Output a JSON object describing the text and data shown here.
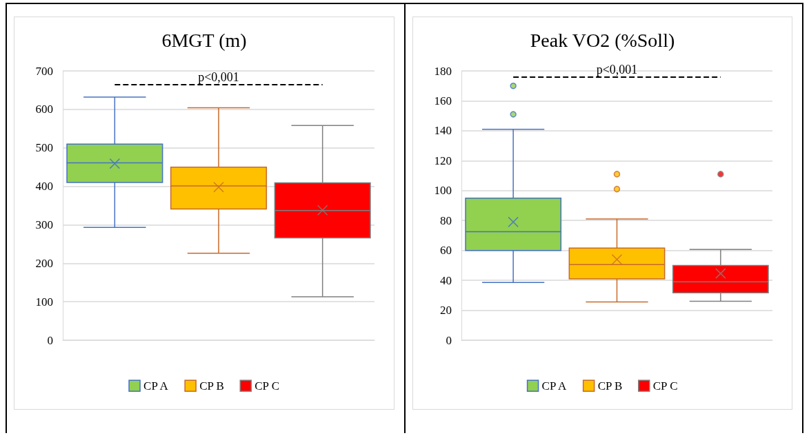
{
  "chart_data": [
    {
      "type": "box",
      "title": "6MGT (m)",
      "categories": [
        null
      ],
      "ylim": [
        0,
        700
      ],
      "yticks": [
        0,
        100,
        200,
        300,
        400,
        500,
        600,
        700
      ],
      "grid": "y",
      "legend": "bottom",
      "tick_labels": "y",
      "ref_lines": [
        {
          "axis": "y",
          "value": 665,
          "label": "p<0,001",
          "color": "#000000",
          "line_style": "dashed"
        }
      ],
      "series": [
        {
          "name": "CP A",
          "color": "#92d050",
          "boxes": [
            {
              "low": 293,
              "q1": 410,
              "median": 461,
              "q3": 510,
              "high": 632,
              "mean": 459
            }
          ]
        },
        {
          "name": "CP B",
          "color": "#ffc000",
          "boxes": [
            {
              "low": 226,
              "q1": 341,
              "median": 401,
              "q3": 450,
              "high": 604,
              "mean": 398
            }
          ]
        },
        {
          "name": "CP C",
          "color": "#ff0000",
          "boxes": [
            {
              "low": 113,
              "q1": 266,
              "median": 337,
              "q3": 409,
              "high": 558,
              "mean": 338
            }
          ]
        }
      ]
    },
    {
      "type": "box",
      "title": "Peak VO2 (%Soll)",
      "categories": [
        null
      ],
      "ylim": [
        0,
        180
      ],
      "yticks": [
        0,
        20,
        40,
        60,
        80,
        100,
        120,
        140,
        160,
        180
      ],
      "grid": "y",
      "legend": "bottom",
      "tick_labels": "y",
      "ref_lines": [
        {
          "axis": "y",
          "value": 176,
          "label": "p<0,001",
          "color": "#000000",
          "line_style": "dashed"
        }
      ],
      "series": [
        {
          "name": "CP A",
          "color": "#92d050",
          "boxes": [
            {
              "low": 38.5,
              "q1": 60,
              "median": 72.5,
              "q3": 95,
              "high": 141,
              "mean": 79,
              "outliers": [
                151,
                170
              ]
            }
          ]
        },
        {
          "name": "CP B",
          "color": "#ffc000",
          "boxes": [
            {
              "low": 25.6,
              "q1": 41,
              "median": 50.5,
              "q3": 61.6,
              "high": 81,
              "mean": 54,
              "outliers": [
                101,
                111
              ]
            }
          ]
        },
        {
          "name": "CP C",
          "color": "#ff0000",
          "boxes": [
            {
              "low": 26,
              "q1": 31.7,
              "median": 39,
              "q3": 50,
              "high": 60.6,
              "mean": 44.6,
              "outliers": [
                111
              ]
            }
          ]
        }
      ]
    }
  ]
}
